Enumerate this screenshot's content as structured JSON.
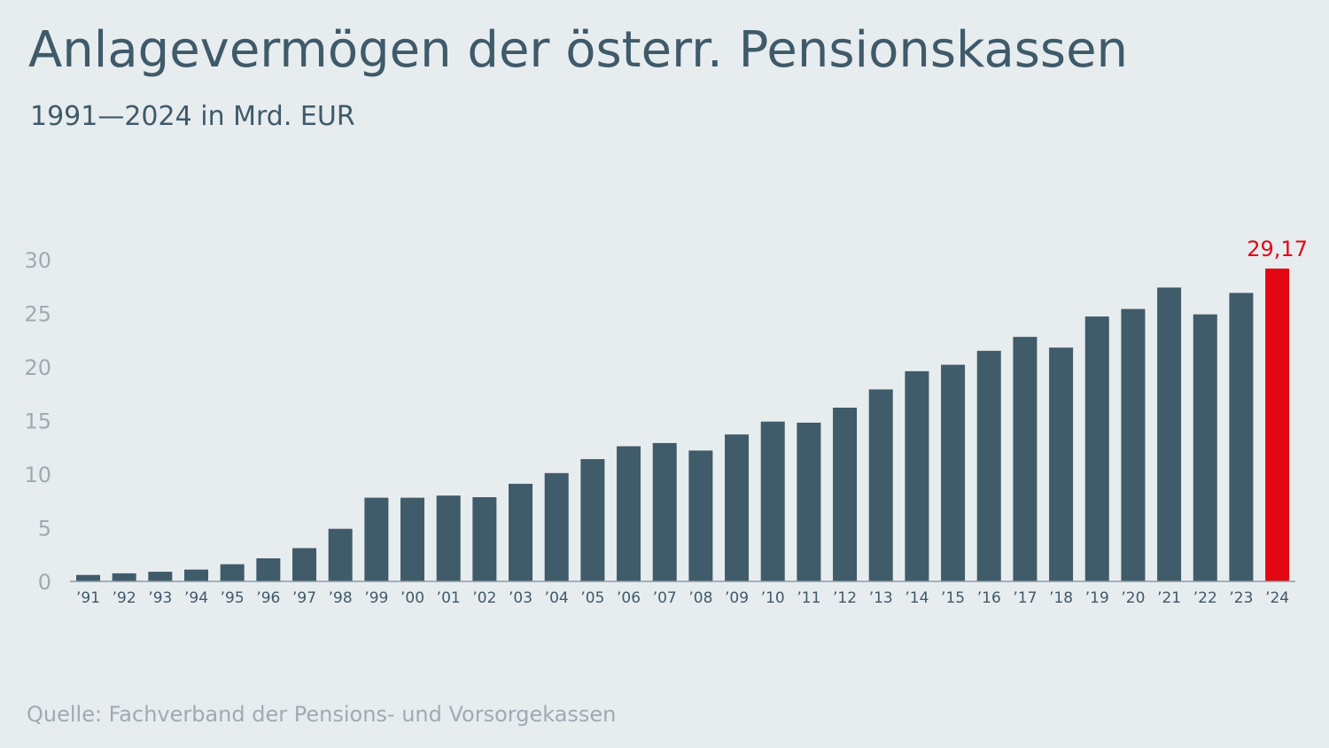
{
  "title": "Anlagevermögen der österr. Pensionskassen",
  "subtitle": "1991—2024 in Mrd. EUR",
  "source": "Quelle: Fachverband der Pensions- und Vorsorgekassen",
  "colors": {
    "bar": "#405b6a",
    "highlight": "#e30613",
    "axis_text": "#9eabb3",
    "category_text": "#3f5a69",
    "background": "#e7ecef"
  },
  "chart_data": {
    "type": "bar",
    "title": "Anlagevermögen der österr. Pensionskassen",
    "subtitle": "1991—2024 in Mrd. EUR",
    "xlabel": "",
    "ylabel": "",
    "ylim": [
      0,
      30
    ],
    "yticks": [
      0,
      5,
      10,
      15,
      20,
      25,
      30
    ],
    "grid": false,
    "categories": [
      "’91",
      "’92",
      "’93",
      "’94",
      "’95",
      "’96",
      "’97",
      "’98",
      "’99",
      "’00",
      "’01",
      "’02",
      "’03",
      "’04",
      "’05",
      "’06",
      "’07",
      "’08",
      "’09",
      "’10",
      "’11",
      "’12",
      "’13",
      "’14",
      "’15",
      "’16",
      "’17",
      "’18",
      "’19",
      "’20",
      "’21",
      "’22",
      "’23",
      "’24"
    ],
    "values": [
      0.6,
      0.75,
      0.9,
      1.1,
      1.6,
      2.15,
      3.1,
      4.9,
      7.8,
      7.8,
      8.0,
      7.85,
      9.1,
      10.1,
      11.4,
      12.6,
      12.9,
      12.2,
      13.7,
      14.9,
      14.8,
      16.2,
      17.9,
      19.6,
      20.2,
      21.5,
      22.8,
      21.8,
      24.7,
      25.4,
      27.4,
      24.9,
      26.9,
      29.17
    ],
    "highlight_index": 33,
    "data_labels": [
      {
        "category": "’24",
        "text": "29,17"
      }
    ]
  }
}
